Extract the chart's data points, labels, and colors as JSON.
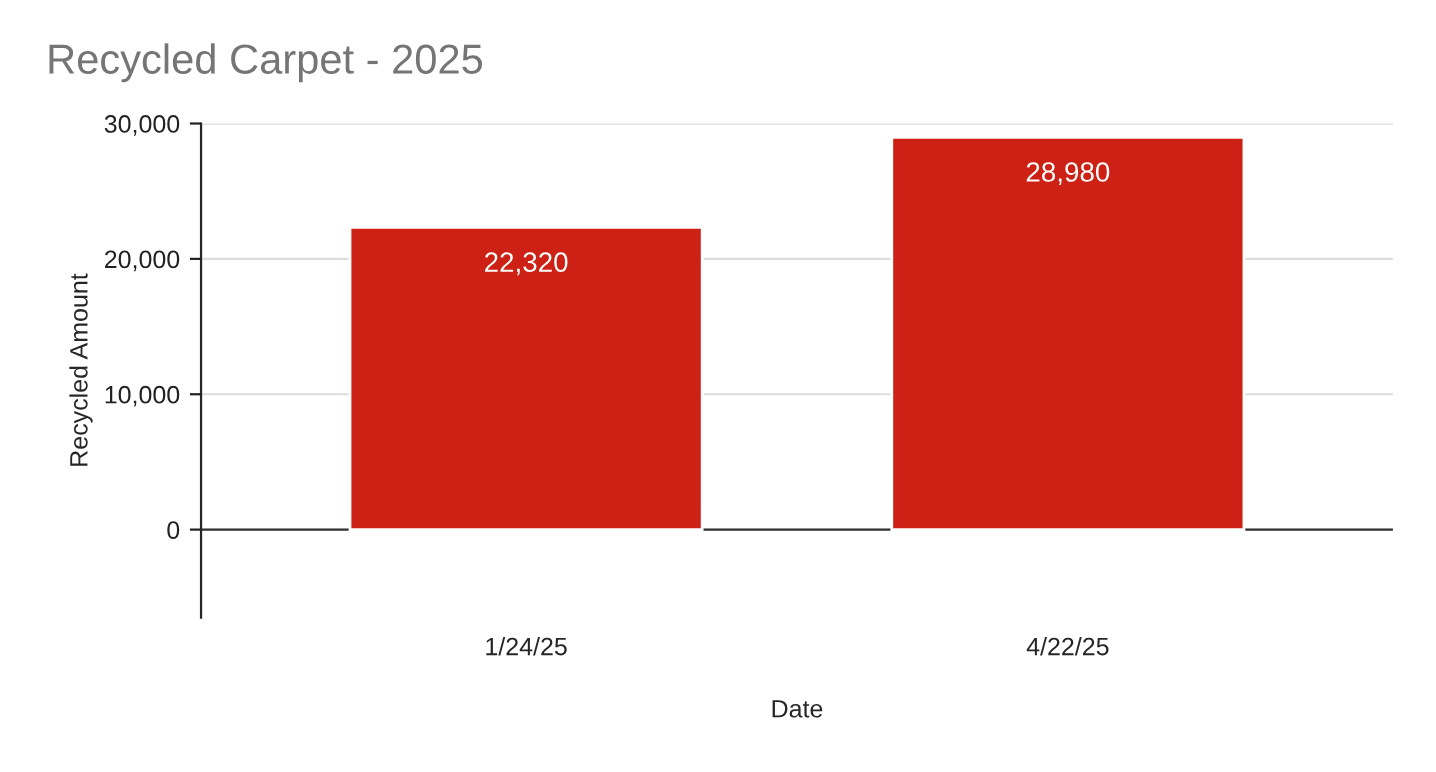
{
  "chart_data": {
    "type": "bar",
    "title": "Recycled Carpet - 2025",
    "xlabel": "Date",
    "ylabel": "Recycled Amount",
    "categories": [
      "1/24/25",
      "4/22/25"
    ],
    "values": [
      22320,
      28980
    ],
    "value_labels": [
      "22,320",
      "28,980"
    ],
    "color": "#cc2114",
    "ylim": [
      -6500,
      30000
    ],
    "yticks": [
      {
        "value": 0,
        "label": "0"
      },
      {
        "value": 10000,
        "label": "10,000"
      },
      {
        "value": 20000,
        "label": "20,000"
      },
      {
        "value": 30000,
        "label": "30,000"
      }
    ],
    "grid": "y"
  }
}
